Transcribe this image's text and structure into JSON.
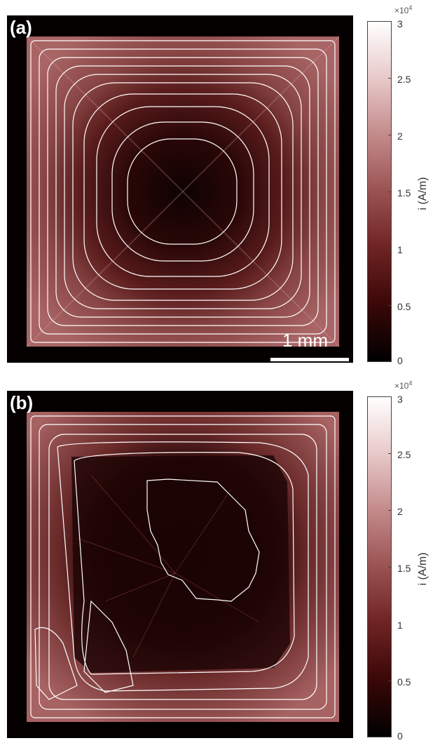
{
  "panel_a": {
    "label": "(a)",
    "scale_bar": "1 mm"
  },
  "panel_b": {
    "label": "(b)"
  },
  "colorbar": {
    "label": "i (A/m)",
    "multiplier": "×10",
    "multiplier_exponent": "4",
    "ticks": [
      "0",
      "0.5",
      "1",
      "1.5",
      "2",
      "2.5",
      "3"
    ],
    "colormap": [
      "#000000",
      "#3a0707",
      "#6e2323",
      "#9a5252",
      "#c38a8a",
      "#e8c9c9",
      "#ffffff"
    ]
  }
}
